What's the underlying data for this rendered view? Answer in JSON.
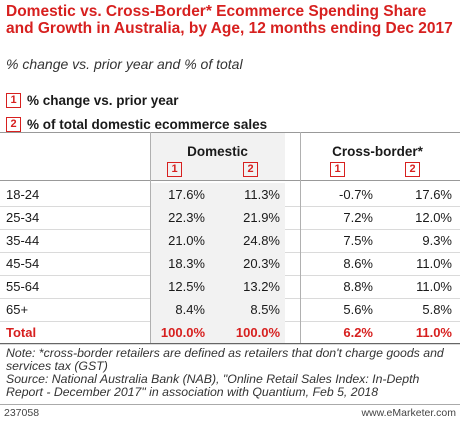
{
  "header": {
    "title": "Domestic vs. Cross-Border* Ecommerce Spending Share and Growth in Australia, by Age, 12 months ending Dec 2017",
    "subtitle": "% change vs. prior year and % of total"
  },
  "legend": [
    {
      "badge": "1",
      "label": "% change vs. prior year"
    },
    {
      "badge": "2",
      "label": "% of total domestic ecommerce sales"
    }
  ],
  "chart_data": {
    "type": "table",
    "groups": [
      "Domestic",
      "Cross-border*"
    ],
    "column_badges": [
      "1",
      "2",
      "1",
      "2"
    ],
    "rows": [
      {
        "label": "18-24",
        "values": [
          "17.6%",
          "11.3%",
          "-0.7%",
          "17.6%"
        ]
      },
      {
        "label": "25-34",
        "values": [
          "22.3%",
          "21.9%",
          "7.2%",
          "12.0%"
        ]
      },
      {
        "label": "35-44",
        "values": [
          "21.0%",
          "24.8%",
          "7.5%",
          "9.3%"
        ]
      },
      {
        "label": "45-54",
        "values": [
          "18.3%",
          "20.3%",
          "8.6%",
          "11.0%"
        ]
      },
      {
        "label": "55-64",
        "values": [
          "12.5%",
          "13.2%",
          "8.8%",
          "11.0%"
        ]
      },
      {
        "label": "65+",
        "values": [
          "8.4%",
          "8.5%",
          "5.6%",
          "5.8%"
        ]
      },
      {
        "label": "Total",
        "values": [
          "100.0%",
          "100.0%",
          "6.2%",
          "11.0%"
        ],
        "emphasis": true
      }
    ]
  },
  "note": "Note: *cross-border retailers are defined as retailers that don't charge goods and services tax (GST)",
  "source": "Source: National Australia Bank (NAB), \"Online Retail Sales Index: In-Depth Report - December 2017\" in association with Quantium, Feb 5, 2018",
  "footer": {
    "id": "237058",
    "brand": "www.eMarketer.com"
  },
  "colors": {
    "accent": "#d7201f",
    "shade": "#f2f2f2"
  }
}
